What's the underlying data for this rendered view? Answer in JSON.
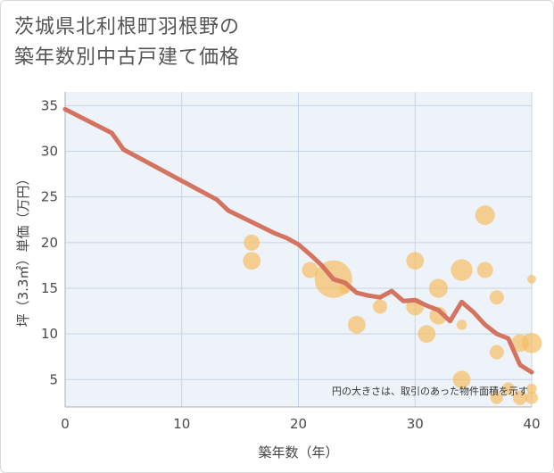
{
  "chart_data": {
    "type": "scatter",
    "title_lines": [
      "茨城県北利根町羽根野の",
      "築年数別中古戸建て価格"
    ],
    "xlabel": "築年数（年）",
    "ylabel": "坪（3.3㎡）単価（万円）",
    "xlim": [
      0,
      40
    ],
    "ylim": [
      2,
      36.5
    ],
    "x_ticks": [
      0,
      10,
      20,
      30,
      40
    ],
    "y_ticks": [
      5,
      10,
      15,
      20,
      25,
      30,
      35
    ],
    "note": "円の大きさは、取引のあった物件面積を示す",
    "colors": {
      "line": "#d4735f",
      "bubble": "#f5bd62",
      "plot_bg": "#eef3fa",
      "grid": "#c5d3e6"
    },
    "trend_line": {
      "x": [
        0,
        4,
        5,
        13,
        14,
        18,
        19,
        20,
        21,
        22,
        23,
        24,
        25,
        26,
        27,
        28,
        29,
        30,
        31,
        32,
        33,
        34,
        35,
        36,
        37,
        38,
        39,
        40
      ],
      "y": [
        34.6,
        32.0,
        30.2,
        24.7,
        23.5,
        21.0,
        20.5,
        19.8,
        18.7,
        17.5,
        16.0,
        15.6,
        14.5,
        14.2,
        14.0,
        14.7,
        13.6,
        13.7,
        13.1,
        12.6,
        11.4,
        13.5,
        12.4,
        11.0,
        10.0,
        9.5,
        6.6,
        5.8
      ]
    },
    "points": [
      {
        "x": 16,
        "y": 20,
        "size": 1
      },
      {
        "x": 16,
        "y": 18,
        "size": 1.2
      },
      {
        "x": 21,
        "y": 17,
        "size": 1
      },
      {
        "x": 23,
        "y": 16,
        "size": 5.5
      },
      {
        "x": 24,
        "y": 15,
        "size": 0.5
      },
      {
        "x": 25,
        "y": 11,
        "size": 1.2
      },
      {
        "x": 27,
        "y": 13,
        "size": 0.8
      },
      {
        "x": 30,
        "y": 18,
        "size": 1.2
      },
      {
        "x": 30,
        "y": 13,
        "size": 1.2
      },
      {
        "x": 31,
        "y": 10,
        "size": 1.2
      },
      {
        "x": 32,
        "y": 15,
        "size": 1.4
      },
      {
        "x": 32,
        "y": 12,
        "size": 1.2
      },
      {
        "x": 34,
        "y": 17,
        "size": 1.8
      },
      {
        "x": 34,
        "y": 11,
        "size": 0.4
      },
      {
        "x": 34,
        "y": 5,
        "size": 1.2
      },
      {
        "x": 36,
        "y": 23,
        "size": 1.5
      },
      {
        "x": 36,
        "y": 17,
        "size": 1
      },
      {
        "x": 37,
        "y": 14,
        "size": 0.8
      },
      {
        "x": 37,
        "y": 8,
        "size": 0.8
      },
      {
        "x": 37,
        "y": 3,
        "size": 0.6
      },
      {
        "x": 38,
        "y": 4,
        "size": 0.6
      },
      {
        "x": 39,
        "y": 9,
        "size": 1.2
      },
      {
        "x": 39,
        "y": 3,
        "size": 0.8
      },
      {
        "x": 40,
        "y": 16,
        "size": 0.3
      },
      {
        "x": 40,
        "y": 9,
        "size": 1.6
      },
      {
        "x": 40,
        "y": 4,
        "size": 0.4
      },
      {
        "x": 40,
        "y": 3,
        "size": 0.6
      }
    ]
  }
}
